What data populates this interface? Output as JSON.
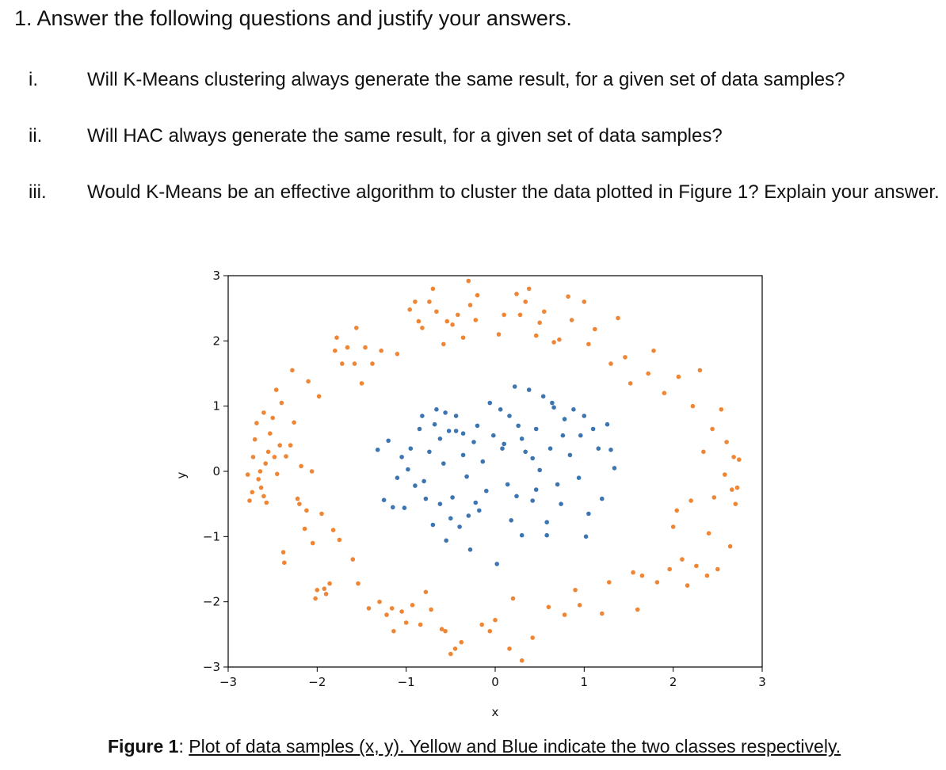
{
  "question": {
    "header": "1. Answer the following questions and justify your answers.",
    "items": [
      {
        "num": "i.",
        "text": "Will K-Means clustering always generate the same result, for a given set of data samples?"
      },
      {
        "num": "ii.",
        "text": "Will HAC always generate the same result, for a given set of data samples?"
      },
      {
        "num": "iii.",
        "text": "Would K-Means be an effective algorithm to cluster the data plotted in Figure 1? Explain your answer."
      }
    ]
  },
  "caption": {
    "label": "Figure 1",
    "separator": ": ",
    "text": "Plot of data samples (x, y). Yellow and Blue indicate the two classes respectively."
  },
  "chart_data": {
    "type": "scatter",
    "title": "",
    "xlabel": "x",
    "ylabel": "y",
    "xlim": [
      -3,
      3
    ],
    "ylim": [
      -3,
      3
    ],
    "xticks": [
      "−3",
      "−2",
      "−1",
      "0",
      "1",
      "2",
      "3"
    ],
    "yticks": [
      "3",
      "2",
      "1",
      "0",
      "−1",
      "−2",
      "−3"
    ],
    "xtick_values": [
      -3,
      -2,
      -1,
      0,
      1,
      2,
      3
    ],
    "ytick_values": [
      3,
      2,
      1,
      0,
      -1,
      -2,
      -3
    ],
    "grid": false,
    "legend": "none",
    "series": [
      {
        "color": "#ee8636",
        "points": [
          [
            -2.78,
            -0.05
          ],
          [
            -2.76,
            -0.45
          ],
          [
            -2.73,
            -0.32
          ],
          [
            -2.72,
            0.22
          ],
          [
            -2.7,
            0.49
          ],
          [
            -2.68,
            0.74
          ],
          [
            -2.66,
            -0.12
          ],
          [
            -2.64,
            0.0
          ],
          [
            -2.63,
            -0.25
          ],
          [
            -2.6,
            -0.38
          ],
          [
            -2.6,
            0.9
          ],
          [
            -2.58,
            0.12
          ],
          [
            -2.57,
            -0.48
          ],
          [
            -2.55,
            0.3
          ],
          [
            -2.53,
            0.58
          ],
          [
            -2.5,
            0.82
          ],
          [
            -2.48,
            0.22
          ],
          [
            -2.46,
            1.25
          ],
          [
            -2.45,
            -0.04
          ],
          [
            -2.42,
            0.4
          ],
          [
            -2.4,
            1.05
          ],
          [
            -2.38,
            -1.24
          ],
          [
            -2.37,
            -1.4
          ],
          [
            -2.35,
            0.23
          ],
          [
            -2.3,
            0.4
          ],
          [
            -2.28,
            1.55
          ],
          [
            -2.26,
            0.75
          ],
          [
            -2.22,
            -0.42
          ],
          [
            -2.2,
            -0.5
          ],
          [
            -2.18,
            0.08
          ],
          [
            -2.14,
            -0.88
          ],
          [
            -2.12,
            -0.6
          ],
          [
            -2.1,
            1.38
          ],
          [
            -2.06,
            0.0
          ],
          [
            -2.05,
            -1.1
          ],
          [
            -2.02,
            -1.95
          ],
          [
            -2.0,
            -1.82
          ],
          [
            -1.98,
            1.15
          ],
          [
            -1.95,
            -0.65
          ],
          [
            -1.92,
            -1.8
          ],
          [
            -1.9,
            -1.88
          ],
          [
            -1.86,
            -1.72
          ],
          [
            -1.82,
            -0.9
          ],
          [
            -1.8,
            1.85
          ],
          [
            -1.78,
            2.05
          ],
          [
            -1.75,
            -1.05
          ],
          [
            -1.72,
            1.65
          ],
          [
            -1.66,
            1.9
          ],
          [
            -1.6,
            -1.35
          ],
          [
            -1.58,
            1.65
          ],
          [
            -1.56,
            2.2
          ],
          [
            -1.54,
            -1.72
          ],
          [
            -1.5,
            1.35
          ],
          [
            -1.46,
            1.9
          ],
          [
            -1.42,
            -2.1
          ],
          [
            -1.38,
            1.65
          ],
          [
            -1.3,
            -2.0
          ],
          [
            -1.28,
            1.85
          ],
          [
            -1.22,
            -2.2
          ],
          [
            -1.16,
            -2.1
          ],
          [
            -1.14,
            -2.45
          ],
          [
            -1.1,
            1.8
          ],
          [
            -1.05,
            -2.15
          ],
          [
            -1.0,
            -2.32
          ],
          [
            -0.96,
            2.48
          ],
          [
            -0.93,
            -2.05
          ],
          [
            -0.9,
            2.6
          ],
          [
            -0.86,
            2.3
          ],
          [
            -0.84,
            -2.35
          ],
          [
            -0.82,
            2.2
          ],
          [
            -0.78,
            -1.85
          ],
          [
            -0.74,
            2.6
          ],
          [
            -0.72,
            -2.12
          ],
          [
            -0.7,
            2.8
          ],
          [
            -0.66,
            2.45
          ],
          [
            -0.6,
            -2.42
          ],
          [
            -0.58,
            1.95
          ],
          [
            -0.56,
            -2.45
          ],
          [
            -0.54,
            2.3
          ],
          [
            -0.5,
            -2.8
          ],
          [
            -0.48,
            2.25
          ],
          [
            -0.45,
            -2.72
          ],
          [
            -0.42,
            2.4
          ],
          [
            -0.38,
            -2.62
          ],
          [
            -0.36,
            2.05
          ],
          [
            -0.3,
            2.92
          ],
          [
            -0.28,
            2.55
          ],
          [
            -0.22,
            2.32
          ],
          [
            -0.2,
            2.7
          ],
          [
            -0.15,
            -2.35
          ],
          [
            -0.06,
            -2.45
          ],
          [
            0.0,
            -2.28
          ],
          [
            0.04,
            2.1
          ],
          [
            0.1,
            2.4
          ],
          [
            0.16,
            -2.72
          ],
          [
            0.2,
            -1.95
          ],
          [
            0.24,
            2.72
          ],
          [
            0.28,
            2.4
          ],
          [
            0.3,
            -2.9
          ],
          [
            0.34,
            2.6
          ],
          [
            0.38,
            2.8
          ],
          [
            0.42,
            -2.55
          ],
          [
            0.46,
            2.08
          ],
          [
            0.5,
            2.28
          ],
          [
            0.55,
            2.45
          ],
          [
            0.6,
            -2.08
          ],
          [
            0.66,
            1.98
          ],
          [
            0.72,
            2.02
          ],
          [
            0.78,
            -2.2
          ],
          [
            0.82,
            2.68
          ],
          [
            0.86,
            2.32
          ],
          [
            0.9,
            -1.82
          ],
          [
            0.95,
            -2.05
          ],
          [
            1.0,
            2.6
          ],
          [
            1.05,
            1.95
          ],
          [
            1.12,
            2.18
          ],
          [
            1.2,
            -2.18
          ],
          [
            1.28,
            -1.7
          ],
          [
            1.3,
            1.65
          ],
          [
            1.38,
            2.35
          ],
          [
            1.46,
            1.75
          ],
          [
            1.52,
            1.35
          ],
          [
            1.55,
            -1.55
          ],
          [
            1.6,
            -2.12
          ],
          [
            1.65,
            -1.6
          ],
          [
            1.72,
            1.5
          ],
          [
            1.78,
            1.85
          ],
          [
            1.82,
            -1.7
          ],
          [
            1.9,
            1.2
          ],
          [
            1.96,
            -1.5
          ],
          [
            2.0,
            -0.85
          ],
          [
            2.04,
            -0.6
          ],
          [
            2.06,
            1.45
          ],
          [
            2.1,
            -1.35
          ],
          [
            2.16,
            -1.75
          ],
          [
            2.2,
            -0.45
          ],
          [
            2.22,
            1.0
          ],
          [
            2.26,
            -1.45
          ],
          [
            2.3,
            1.55
          ],
          [
            2.34,
            0.3
          ],
          [
            2.38,
            -1.6
          ],
          [
            2.4,
            -0.95
          ],
          [
            2.44,
            0.65
          ],
          [
            2.46,
            -0.4
          ],
          [
            2.5,
            -1.5
          ],
          [
            2.54,
            0.95
          ],
          [
            2.58,
            -0.05
          ],
          [
            2.6,
            0.45
          ],
          [
            2.64,
            -1.15
          ],
          [
            2.66,
            -0.28
          ],
          [
            2.68,
            0.22
          ],
          [
            2.7,
            -0.5
          ],
          [
            2.72,
            -0.25
          ],
          [
            2.74,
            0.18
          ]
        ]
      },
      {
        "color": "#3d75b1",
        "points": [
          [
            -1.32,
            0.33
          ],
          [
            -1.25,
            -0.44
          ],
          [
            -1.2,
            0.47
          ],
          [
            -1.15,
            -0.55
          ],
          [
            -1.1,
            -0.1
          ],
          [
            -1.05,
            0.22
          ],
          [
            -1.02,
            -0.56
          ],
          [
            -0.98,
            0.03
          ],
          [
            -0.95,
            0.35
          ],
          [
            -0.9,
            -0.22
          ],
          [
            -0.85,
            0.65
          ],
          [
            -0.82,
            0.85
          ],
          [
            -0.78,
            -0.42
          ],
          [
            -0.74,
            0.3
          ],
          [
            -0.7,
            -0.82
          ],
          [
            -0.66,
            0.95
          ],
          [
            -0.62,
            -0.5
          ],
          [
            -0.58,
            0.12
          ],
          [
            -0.55,
            -1.06
          ],
          [
            -0.52,
            0.62
          ],
          [
            -0.48,
            -0.4
          ],
          [
            -0.44,
            0.85
          ],
          [
            -0.4,
            -0.85
          ],
          [
            -0.36,
            0.25
          ],
          [
            -0.32,
            -0.08
          ],
          [
            -0.28,
            -1.2
          ],
          [
            -0.24,
            0.45
          ],
          [
            -0.2,
            0.7
          ],
          [
            -0.18,
            -0.6
          ],
          [
            -0.14,
            0.15
          ],
          [
            -0.1,
            -0.3
          ],
          [
            -0.06,
            1.05
          ],
          [
            -0.02,
            0.55
          ],
          [
            0.02,
            -1.42
          ],
          [
            0.06,
            0.95
          ],
          [
            0.1,
            0.42
          ],
          [
            0.14,
            -0.2
          ],
          [
            0.18,
            -0.75
          ],
          [
            0.22,
            1.3
          ],
          [
            0.26,
            0.7
          ],
          [
            0.3,
            -0.98
          ],
          [
            0.34,
            0.3
          ],
          [
            0.38,
            1.25
          ],
          [
            0.42,
            -0.45
          ],
          [
            0.46,
            0.65
          ],
          [
            0.5,
            0.02
          ],
          [
            0.54,
            1.15
          ],
          [
            0.58,
            -0.78
          ],
          [
            0.62,
            0.35
          ],
          [
            0.66,
            0.98
          ],
          [
            0.7,
            -0.2
          ],
          [
            0.74,
            -0.5
          ],
          [
            0.78,
            0.8
          ],
          [
            0.84,
            0.25
          ],
          [
            0.88,
            0.95
          ],
          [
            0.94,
            -0.1
          ],
          [
            1.0,
            0.85
          ],
          [
            1.05,
            -0.65
          ],
          [
            1.1,
            0.65
          ],
          [
            1.16,
            0.35
          ],
          [
            1.2,
            -0.42
          ],
          [
            1.26,
            0.72
          ],
          [
            1.3,
            0.33
          ],
          [
            1.34,
            0.05
          ],
          [
            -0.68,
            0.72
          ],
          [
            -0.56,
            0.9
          ],
          [
            -0.44,
            0.62
          ],
          [
            0.16,
            0.85
          ],
          [
            0.3,
            0.5
          ],
          [
            0.46,
            -0.28
          ],
          [
            -0.5,
            -0.72
          ],
          [
            -0.3,
            -0.68
          ],
          [
            0.58,
            -0.98
          ],
          [
            0.76,
            0.55
          ],
          [
            0.96,
            0.55
          ],
          [
            1.02,
            -1.0
          ],
          [
            -0.8,
            -0.15
          ],
          [
            -0.62,
            0.5
          ],
          [
            -0.22,
            -0.48
          ],
          [
            0.64,
            1.05
          ],
          [
            0.24,
            -0.38
          ],
          [
            0.08,
            0.35
          ],
          [
            -0.36,
            0.58
          ],
          [
            0.42,
            0.2
          ]
        ]
      }
    ]
  }
}
